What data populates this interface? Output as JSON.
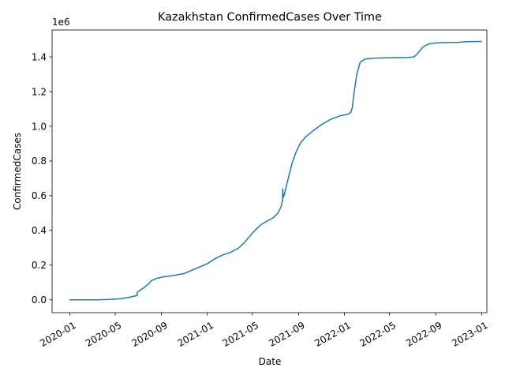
{
  "chart_data": {
    "type": "line",
    "title": "Kazakhstan  ConfirmedCases Over Time",
    "xlabel": "Date",
    "ylabel": "ConfirmedCases",
    "y_offset_label": "1e6",
    "xlim": [
      "2019-11-15",
      "2023-01-15"
    ],
    "ylim": [
      -0.074,
      1.555
    ],
    "x_ticks": [
      "2020-01",
      "2020-05",
      "2020-09",
      "2021-01",
      "2021-05",
      "2021-09",
      "2022-01",
      "2022-05",
      "2022-09",
      "2023-01"
    ],
    "y_ticks": [
      0.0,
      0.2,
      0.4,
      0.6,
      0.8,
      1.0,
      1.2,
      1.4
    ],
    "y_tick_labels": [
      "0.0",
      "0.2",
      "0.4",
      "0.6",
      "0.8",
      "1.0",
      "1.2",
      "1.4"
    ],
    "x_tick_rotation_deg": 30,
    "grid": false,
    "legend": "none",
    "series": [
      {
        "color": "#1f77b4",
        "points": [
          [
            "2020-01-01",
            0.0
          ],
          [
            "2020-03-15",
            0.0
          ],
          [
            "2020-04-15",
            0.002
          ],
          [
            "2020-05-15",
            0.006
          ],
          [
            "2020-06-10",
            0.016
          ],
          [
            "2020-06-28",
            0.025
          ],
          [
            "2020-06-29",
            0.045
          ],
          [
            "2020-07-15",
            0.068
          ],
          [
            "2020-07-28",
            0.09
          ],
          [
            "2020-08-05",
            0.11
          ],
          [
            "2020-08-20",
            0.124
          ],
          [
            "2020-09-05",
            0.132
          ],
          [
            "2020-10-01",
            0.14
          ],
          [
            "2020-11-01",
            0.152
          ],
          [
            "2020-12-01",
            0.18
          ],
          [
            "2021-01-01",
            0.208
          ],
          [
            "2021-01-20",
            0.235
          ],
          [
            "2021-02-10",
            0.258
          ],
          [
            "2021-03-05",
            0.275
          ],
          [
            "2021-03-25",
            0.298
          ],
          [
            "2021-04-10",
            0.33
          ],
          [
            "2021-04-25",
            0.37
          ],
          [
            "2021-05-10",
            0.405
          ],
          [
            "2021-05-25",
            0.435
          ],
          [
            "2021-06-10",
            0.455
          ],
          [
            "2021-06-25",
            0.472
          ],
          [
            "2021-07-08",
            0.5
          ],
          [
            "2021-07-16",
            0.535
          ],
          [
            "2021-07-20",
            0.57
          ],
          [
            "2021-07-21",
            0.64
          ],
          [
            "2021-07-22",
            0.59
          ],
          [
            "2021-07-25",
            0.605
          ],
          [
            "2021-08-01",
            0.67
          ],
          [
            "2021-08-08",
            0.73
          ],
          [
            "2021-08-15",
            0.79
          ],
          [
            "2021-08-25",
            0.85
          ],
          [
            "2021-09-05",
            0.9
          ],
          [
            "2021-09-20",
            0.94
          ],
          [
            "2021-10-10",
            0.975
          ],
          [
            "2021-11-01",
            1.01
          ],
          [
            "2021-11-25",
            1.04
          ],
          [
            "2021-12-20",
            1.06
          ],
          [
            "2022-01-10",
            1.07
          ],
          [
            "2022-01-18",
            1.08
          ],
          [
            "2022-01-22",
            1.11
          ],
          [
            "2022-01-27",
            1.2
          ],
          [
            "2022-02-03",
            1.3
          ],
          [
            "2022-02-12",
            1.37
          ],
          [
            "2022-02-25",
            1.388
          ],
          [
            "2022-03-20",
            1.393
          ],
          [
            "2022-05-01",
            1.395
          ],
          [
            "2022-06-20",
            1.397
          ],
          [
            "2022-07-05",
            1.4
          ],
          [
            "2022-07-15",
            1.42
          ],
          [
            "2022-07-28",
            1.455
          ],
          [
            "2022-08-10",
            1.472
          ],
          [
            "2022-08-25",
            1.479
          ],
          [
            "2022-09-15",
            1.482
          ],
          [
            "2022-11-01",
            1.484
          ],
          [
            "2022-11-20",
            1.488
          ],
          [
            "2022-12-31",
            1.489
          ]
        ]
      }
    ]
  }
}
